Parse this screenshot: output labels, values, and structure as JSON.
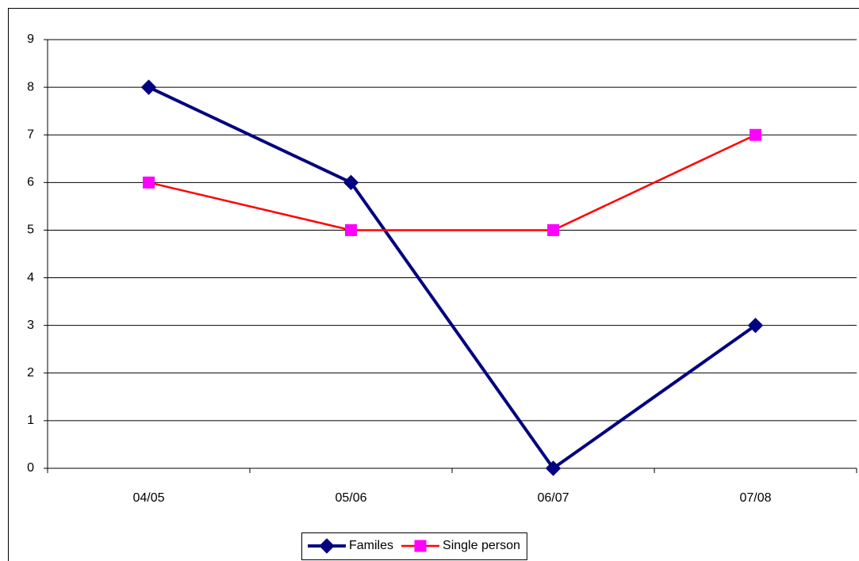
{
  "chart_data": {
    "type": "line",
    "categories": [
      "04/05",
      "05/06",
      "06/07",
      "07/08"
    ],
    "series": [
      {
        "name": "Familes",
        "color": "#000080",
        "marker_color": "#000080",
        "marker": "diamond",
        "values": [
          8,
          6,
          0,
          3
        ]
      },
      {
        "name": "Single person",
        "color": "#ff0000",
        "marker_color": "#ff00ff",
        "marker": "square",
        "values": [
          6,
          5,
          5,
          7
        ]
      }
    ],
    "ylim": [
      0,
      9
    ],
    "yticks": [
      0,
      1,
      2,
      3,
      4,
      5,
      6,
      7,
      8,
      9
    ],
    "grid": true,
    "legend": "bottom"
  }
}
